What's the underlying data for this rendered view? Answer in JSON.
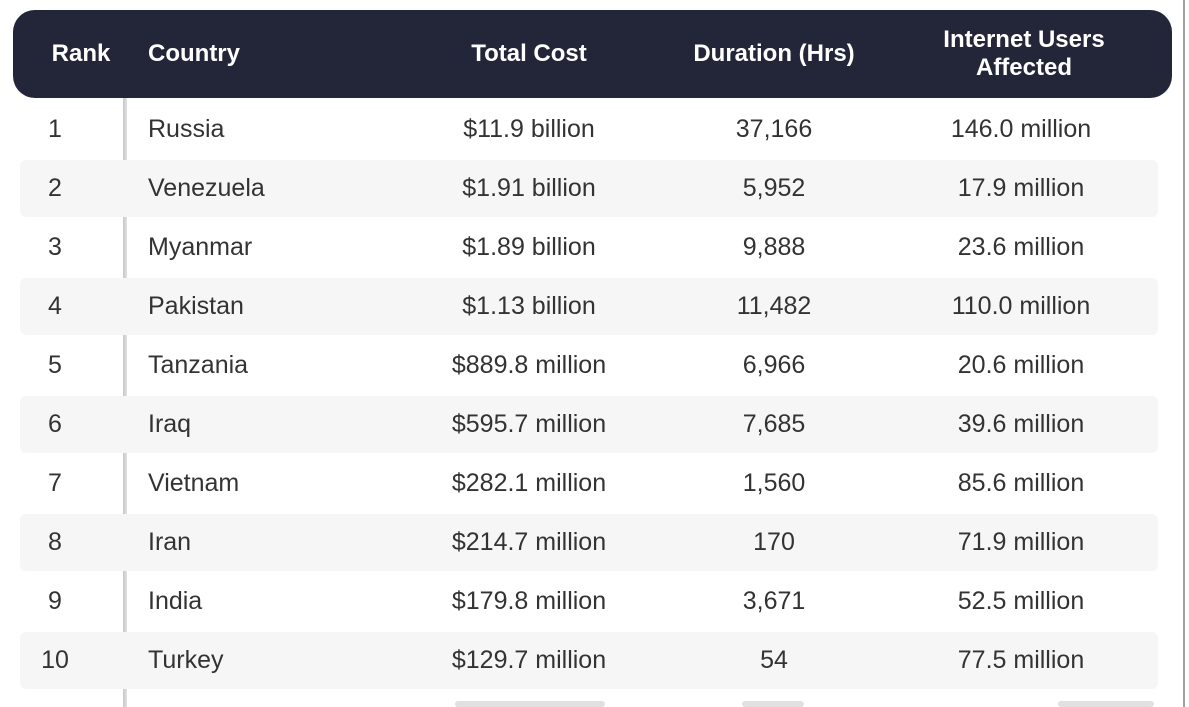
{
  "colors": {
    "header_bg": "#232639",
    "header_text": "#ffffff",
    "body_text": "#333333",
    "stripe": "#f6f6f7",
    "separator": "#d4d4d4",
    "edge_line": "#a0a0a0"
  },
  "chart_data": {
    "type": "table",
    "title": "",
    "columns": [
      "Rank",
      "Country",
      "Total Cost",
      "Duration (Hrs)",
      "Internet Users Affected"
    ],
    "rows": [
      {
        "rank": "1",
        "country": "Russia",
        "cost": "$11.9 billion",
        "duration": "37,166",
        "users": "146.0 million"
      },
      {
        "rank": "2",
        "country": "Venezuela",
        "cost": "$1.91 billion",
        "duration": "5,952",
        "users": "17.9 million"
      },
      {
        "rank": "3",
        "country": "Myanmar",
        "cost": "$1.89 billion",
        "duration": "9,888",
        "users": "23.6 million"
      },
      {
        "rank": "4",
        "country": "Pakistan",
        "cost": "$1.13 billion",
        "duration": "11,482",
        "users": "110.0 million"
      },
      {
        "rank": "5",
        "country": "Tanzania",
        "cost": "$889.8 million",
        "duration": "6,966",
        "users": "20.6 million"
      },
      {
        "rank": "6",
        "country": "Iraq",
        "cost": "$595.7 million",
        "duration": "7,685",
        "users": "39.6 million"
      },
      {
        "rank": "7",
        "country": "Vietnam",
        "cost": "$282.1 million",
        "duration": "1,560",
        "users": "85.6 million"
      },
      {
        "rank": "8",
        "country": "Iran",
        "cost": "$214.7 million",
        "duration": "170",
        "users": "71.9 million"
      },
      {
        "rank": "9",
        "country": "India",
        "cost": "$179.8 million",
        "duration": "3,671",
        "users": "52.5 million"
      },
      {
        "rank": "10",
        "country": "Turkey",
        "cost": "$129.7 million",
        "duration": "54",
        "users": "77.5 million"
      }
    ]
  }
}
